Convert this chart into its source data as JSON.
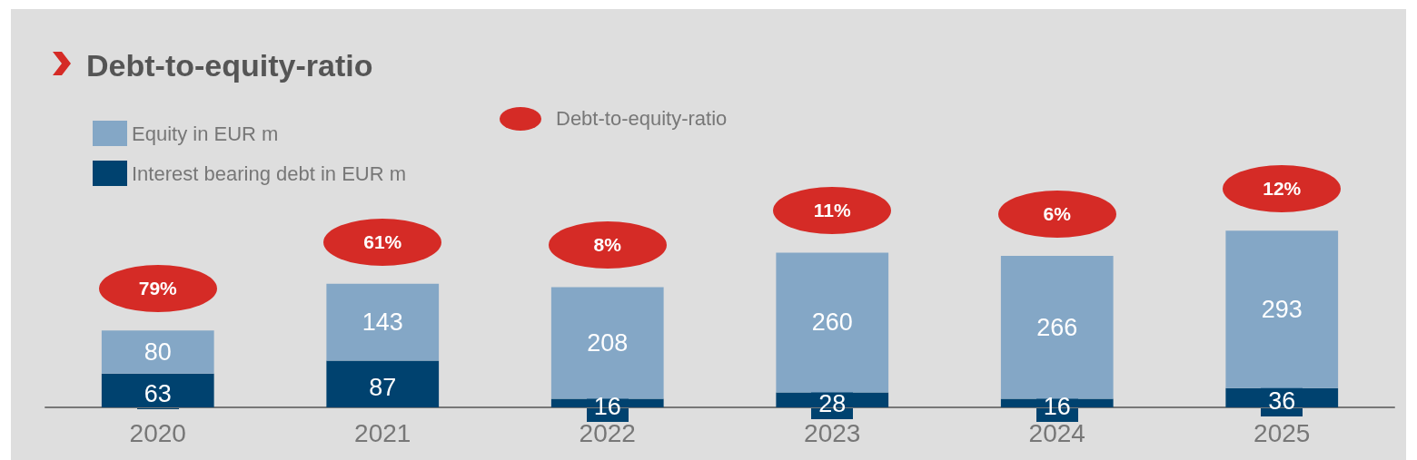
{
  "chart_data": {
    "type": "bar",
    "title": "Debt-to-equity-ratio",
    "categories": [
      "2020",
      "2021",
      "2022",
      "2023",
      "2024",
      "2025"
    ],
    "stacked": true,
    "data_labels": true,
    "legend": "top left",
    "tick_labels": "x",
    "series": [
      {
        "name": "Interest bearing debt in EUR m",
        "color": "#00426f",
        "values": [
          63,
          87,
          16,
          28,
          16,
          36
        ]
      },
      {
        "name": "Equity in EUR m",
        "color": "#84a7c6",
        "values": [
          80,
          143,
          208,
          260,
          266,
          293
        ]
      }
    ],
    "annotations": [
      "Debt-to-equity-ratio",
      {
        "text": "79%",
        "x": "2020",
        "y": 143
      },
      {
        "text": "61%",
        "x": "2021",
        "y": 230
      },
      {
        "text": "8%",
        "x": "2022",
        "y": 224
      },
      {
        "text": "11%",
        "x": "2023",
        "y": 288
      },
      {
        "text": "6%",
        "x": "2024",
        "y": 282
      },
      {
        "text": "12%",
        "x": "2025",
        "y": 329
      }
    ]
  }
}
